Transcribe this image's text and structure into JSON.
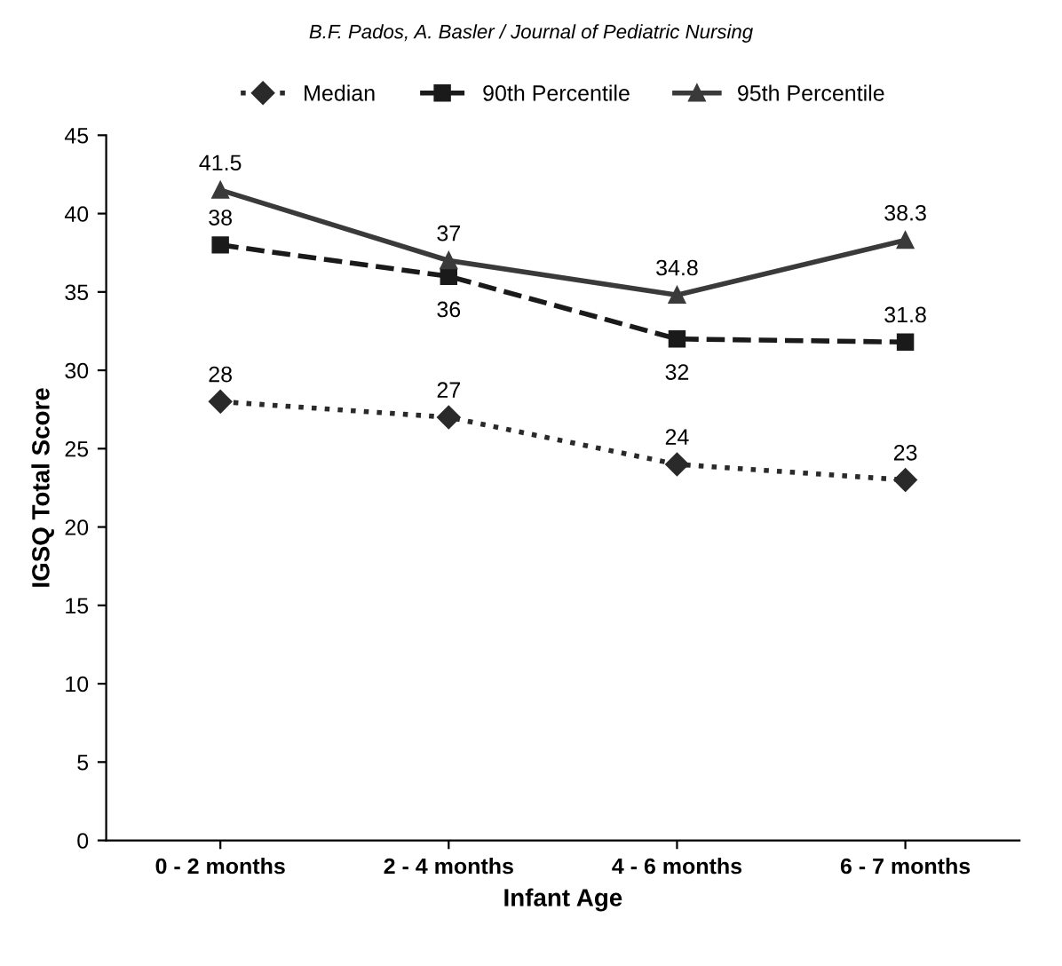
{
  "chart_data": {
    "type": "line",
    "xlabel": "Infant Age",
    "ylabel": "IGSQ Total Score",
    "annotations": [
      "B.F. Pados, A. Basler / Journal of Pediatric Nursing"
    ],
    "categories": [
      "0 - 2 months",
      "2 - 4 months",
      "4 - 6 months",
      "6 - 7 months"
    ],
    "series": [
      {
        "name": "Median",
        "color": "#2a2a2a",
        "values": [
          28,
          27,
          24,
          23
        ],
        "marker": "diamond",
        "line_style": "dotted"
      },
      {
        "name": "90th Percentile",
        "color": "#1a1a1a",
        "values": [
          38,
          36,
          32,
          31.8
        ],
        "marker": "square",
        "line_style": "dashed"
      },
      {
        "name": "95th Percentile",
        "color": "#3a3a3a",
        "values": [
          41.5,
          37,
          34.8,
          38.3
        ],
        "marker": "triangle",
        "line_style": "solid"
      }
    ],
    "ylim": [
      0,
      45
    ],
    "yticks": [
      0,
      5,
      10,
      15,
      20,
      25,
      30,
      35,
      40,
      45
    ],
    "data_labels": true,
    "legend": "top",
    "grid": false
  }
}
